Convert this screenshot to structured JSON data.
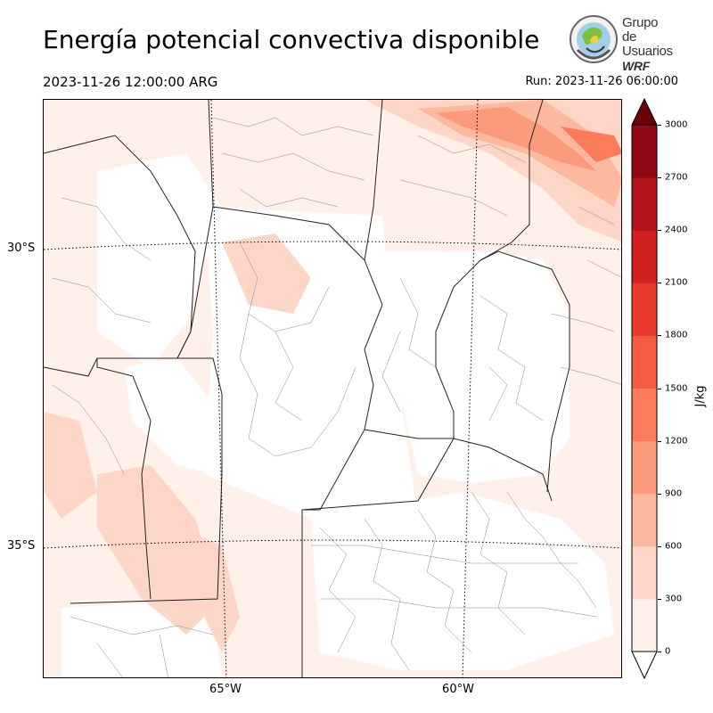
{
  "header": {
    "title": "Energía potencial convectiva disponible",
    "valid_time": "2023-11-26 12:00:00 ARG",
    "run_time": "Run: 2023-11-26 06:00:00"
  },
  "logo": {
    "line1": "Grupo de",
    "line2": "Usuarios",
    "line3": "WRF",
    "icon": "globe-seal-icon"
  },
  "map": {
    "lat_labels": [
      "30°S",
      "35°S"
    ],
    "lon_labels": [
      "65°W",
      "60°W"
    ]
  },
  "colorbar": {
    "unit": "J/kg",
    "ticks": [
      "0",
      "300",
      "600",
      "900",
      "1200",
      "1500",
      "1800",
      "2100",
      "2400",
      "2700",
      "3000"
    ],
    "colors": [
      "#fff0ea",
      "#fdd6c8",
      "#fcb99f",
      "#fc9a7c",
      "#fb7b5b",
      "#f55b41",
      "#ea3a2e",
      "#d0211f",
      "#b3131a",
      "#8e0913",
      "#6a0008"
    ],
    "extend": "both"
  }
}
